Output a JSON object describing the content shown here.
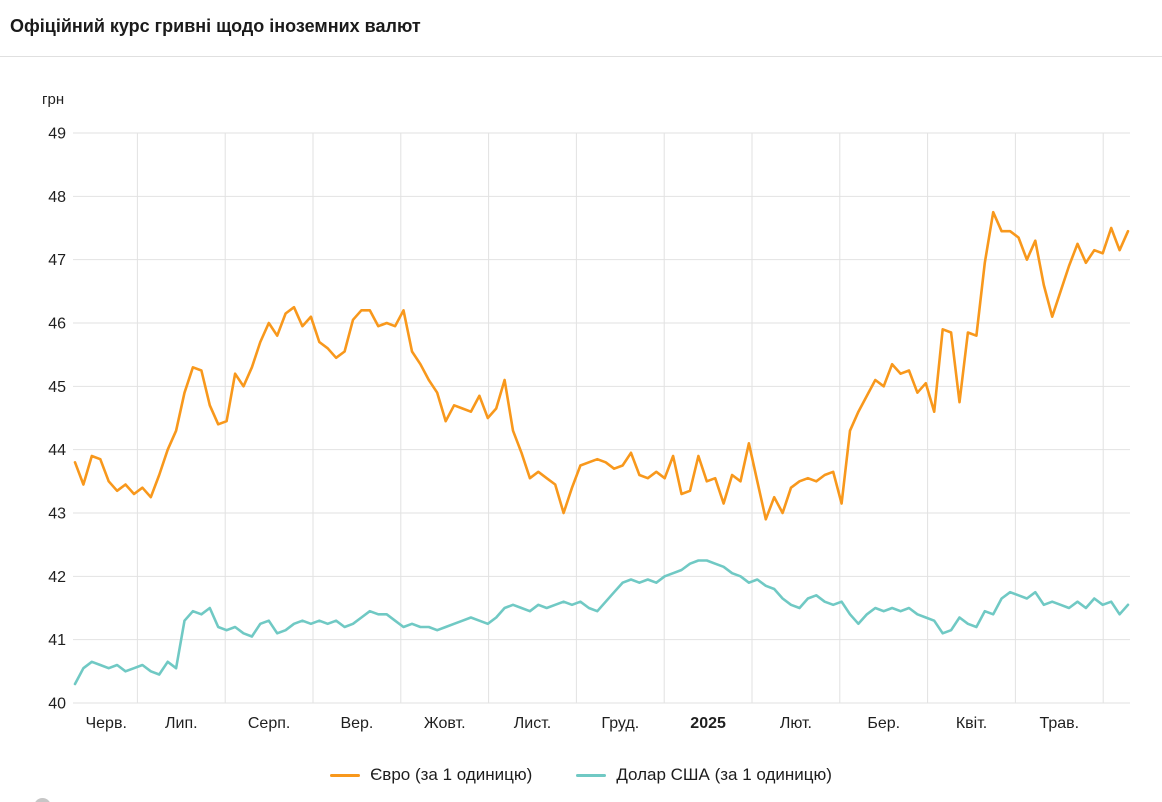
{
  "page": {
    "title": "Офіційний курс гривні щодо іноземних валют"
  },
  "chart_data": {
    "type": "line",
    "title": "Офіційний курс гривні щодо іноземних валют",
    "ylabel": "грн",
    "ylim": [
      40,
      49
    ],
    "y_ticks": [
      40,
      41,
      42,
      43,
      44,
      45,
      46,
      47,
      48,
      49
    ],
    "x_ticks": [
      "Черв.",
      "Лип.",
      "Серп.",
      "Вер.",
      "Жовт.",
      "Лист.",
      "Груд.",
      "2025",
      "Лют.",
      "Бер.",
      "Квіт.",
      "Трав."
    ],
    "x_bold_index": 7,
    "grid": true,
    "legend_position": "bottom",
    "colors": {
      "grid": "#e2e2e2",
      "tick_text": "#1f1f1f"
    },
    "series": [
      {
        "name": "Євро (за 1 одиницю)",
        "color": "#F8981C",
        "values": [
          43.8,
          43.45,
          43.9,
          43.85,
          43.5,
          43.35,
          43.45,
          43.3,
          43.4,
          43.25,
          43.6,
          44.0,
          44.3,
          44.9,
          45.3,
          45.25,
          44.7,
          44.4,
          44.45,
          45.2,
          45.0,
          45.3,
          45.7,
          46.0,
          45.8,
          46.15,
          46.25,
          45.95,
          46.1,
          45.7,
          45.6,
          45.45,
          45.55,
          46.05,
          46.2,
          46.2,
          45.95,
          46.0,
          45.95,
          46.2,
          45.55,
          45.35,
          45.1,
          44.9,
          44.45,
          44.7,
          44.65,
          44.6,
          44.85,
          44.5,
          44.65,
          45.1,
          44.3,
          43.95,
          43.55,
          43.65,
          43.55,
          43.45,
          43.0,
          43.4,
          43.75,
          43.8,
          43.85,
          43.8,
          43.7,
          43.75,
          43.95,
          43.6,
          43.55,
          43.65,
          43.55,
          43.9,
          43.3,
          43.35,
          43.9,
          43.5,
          43.55,
          43.15,
          43.6,
          43.5,
          44.1,
          43.5,
          42.9,
          43.25,
          43.0,
          43.4,
          43.5,
          43.55,
          43.5,
          43.6,
          43.65,
          43.15,
          44.3,
          44.6,
          44.85,
          45.1,
          45.0,
          45.35,
          45.2,
          45.25,
          44.9,
          45.05,
          44.6,
          45.9,
          45.85,
          44.75,
          45.85,
          45.8,
          46.95,
          47.75,
          47.45,
          47.45,
          47.35,
          47.0,
          47.3,
          46.6,
          46.1,
          46.5,
          46.9,
          47.25,
          46.95,
          47.15,
          47.1,
          47.5,
          47.15,
          47.45
        ]
      },
      {
        "name": "Долар США (за 1 одиницю)",
        "color": "#70C9C4",
        "values": [
          40.3,
          40.55,
          40.65,
          40.6,
          40.55,
          40.6,
          40.5,
          40.55,
          40.6,
          40.5,
          40.45,
          40.65,
          40.55,
          41.3,
          41.45,
          41.4,
          41.5,
          41.2,
          41.15,
          41.2,
          41.1,
          41.05,
          41.25,
          41.3,
          41.1,
          41.15,
          41.25,
          41.3,
          41.25,
          41.3,
          41.25,
          41.3,
          41.2,
          41.25,
          41.35,
          41.45,
          41.4,
          41.4,
          41.3,
          41.2,
          41.25,
          41.2,
          41.2,
          41.15,
          41.2,
          41.25,
          41.3,
          41.35,
          41.3,
          41.25,
          41.35,
          41.5,
          41.55,
          41.5,
          41.45,
          41.55,
          41.5,
          41.55,
          41.6,
          41.55,
          41.6,
          41.5,
          41.45,
          41.6,
          41.75,
          41.9,
          41.95,
          41.9,
          41.95,
          41.9,
          42.0,
          42.05,
          42.1,
          42.2,
          42.25,
          42.25,
          42.2,
          42.15,
          42.05,
          42.0,
          41.9,
          41.95,
          41.85,
          41.8,
          41.65,
          41.55,
          41.5,
          41.65,
          41.7,
          41.6,
          41.55,
          41.6,
          41.4,
          41.25,
          41.4,
          41.5,
          41.45,
          41.5,
          41.45,
          41.5,
          41.4,
          41.35,
          41.3,
          41.1,
          41.15,
          41.35,
          41.25,
          41.2,
          41.45,
          41.4,
          41.65,
          41.75,
          41.7,
          41.65,
          41.75,
          41.55,
          41.6,
          41.55,
          41.5,
          41.6,
          41.5,
          41.65,
          41.55,
          41.6,
          41.4,
          41.55
        ]
      }
    ]
  }
}
